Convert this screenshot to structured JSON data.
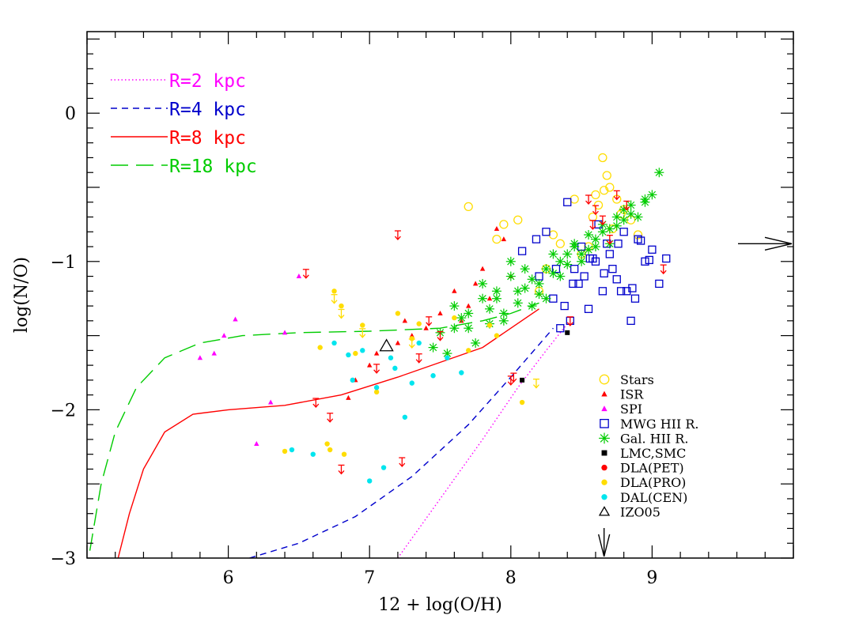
{
  "chart_data": {
    "type": "scatter",
    "title": "",
    "xlabel": "12 + log(O/H)",
    "ylabel": "log(N/O)",
    "xlim": [
      5.0,
      10.0
    ],
    "ylim": [
      -3.0,
      0.55
    ],
    "x_ticks": [
      6,
      7,
      8,
      9
    ],
    "y_ticks": [
      0,
      -1,
      -2,
      -3
    ],
    "x_tick_labels": [
      "6",
      "7",
      "8",
      "9"
    ],
    "y_tick_labels": [
      "0",
      "−1",
      "−2",
      "−3"
    ],
    "grid": false,
    "curve_legend": "top-left",
    "point_legend": "bottom-right",
    "curves": [
      {
        "name": "R=2 kpc",
        "color": "#ff00ff",
        "dash": "dotted",
        "x": [
          7.2,
          7.5,
          7.8,
          8.05,
          8.25,
          8.4
        ],
        "y": [
          -3.0,
          -2.6,
          -2.2,
          -1.85,
          -1.6,
          -1.42
        ]
      },
      {
        "name": "R=4 kpc",
        "color": "#0000cc",
        "dash": "short-dash",
        "x": [
          6.15,
          6.5,
          6.9,
          7.3,
          7.7,
          8.0,
          8.3
        ],
        "y": [
          -3.0,
          -2.9,
          -2.72,
          -2.45,
          -2.1,
          -1.78,
          -1.45
        ]
      },
      {
        "name": "R=8 kpc",
        "color": "#ff0000",
        "dash": "solid",
        "x": [
          5.22,
          5.3,
          5.4,
          5.55,
          5.75,
          6.0,
          6.4,
          6.8,
          7.2,
          7.5,
          7.8,
          8.0,
          8.2
        ],
        "y": [
          -3.0,
          -2.7,
          -2.4,
          -2.15,
          -2.03,
          -2.0,
          -1.97,
          -1.9,
          -1.78,
          -1.68,
          -1.58,
          -1.45,
          -1.32
        ]
      },
      {
        "name": "R=18 kpc",
        "color": "#00cc00",
        "dash": "long-dash",
        "x": [
          5.02,
          5.1,
          5.2,
          5.35,
          5.55,
          5.8,
          6.1,
          6.5,
          7.0,
          7.5,
          7.8,
          8.0,
          8.2
        ],
        "y": [
          -2.95,
          -2.5,
          -2.15,
          -1.85,
          -1.65,
          -1.55,
          -1.5,
          -1.48,
          -1.47,
          -1.45,
          -1.4,
          -1.35,
          -1.28
        ]
      }
    ],
    "series": [
      {
        "name": "Stars",
        "marker": "open-circle",
        "color": "#ffdd00",
        "x": [
          7.7,
          7.95,
          8.05,
          7.9,
          8.3,
          8.45,
          8.6,
          8.65,
          8.68,
          8.7,
          8.75,
          8.8,
          8.85,
          8.9,
          8.62,
          8.58,
          8.72,
          8.5,
          8.55,
          8.2,
          8.25,
          8.35,
          8.78,
          8.66
        ],
        "y": [
          -0.63,
          -0.75,
          -0.72,
          -0.85,
          -0.82,
          -0.58,
          -0.55,
          -0.3,
          -0.42,
          -0.5,
          -0.58,
          -0.65,
          -0.72,
          -0.82,
          -0.62,
          -0.7,
          -0.78,
          -0.95,
          -0.9,
          -1.2,
          -1.05,
          -0.88,
          -0.68,
          -0.52
        ]
      },
      {
        "name": "ISR",
        "marker": "filled-triangle",
        "color": "#ff0000",
        "x": [
          7.25,
          7.9,
          7.95,
          7.8,
          7.6,
          7.7,
          7.5,
          7.4,
          7.3,
          7.2,
          7.05,
          7.0,
          6.9,
          6.85,
          7.75,
          7.85,
          8.0,
          7.65
        ],
        "y": [
          -1.4,
          -0.78,
          -0.85,
          -1.05,
          -1.2,
          -1.3,
          -1.35,
          -1.45,
          -1.5,
          -1.55,
          -1.62,
          -1.7,
          -1.8,
          -1.92,
          -1.15,
          -1.25,
          -1.1,
          -1.4
        ]
      },
      {
        "name": "SPI",
        "marker": "filled-triangle",
        "color": "#ff00ff",
        "x": [
          5.8,
          5.97,
          6.05,
          6.2,
          6.5,
          6.4,
          6.3,
          5.9
        ],
        "y": [
          -1.65,
          -1.5,
          -1.39,
          -2.23,
          -1.1,
          -1.48,
          -1.95,
          -1.62
        ]
      },
      {
        "name": "MWG HII R.",
        "marker": "open-square",
        "color": "#0000cc",
        "x": [
          8.2,
          8.25,
          8.3,
          8.35,
          8.4,
          8.45,
          8.5,
          8.55,
          8.6,
          8.65,
          8.7,
          8.75,
          8.8,
          8.85,
          8.9,
          8.95,
          9.0,
          9.05,
          9.1,
          8.38,
          8.42,
          8.52,
          8.62,
          8.72,
          8.82,
          8.08,
          8.18,
          8.48,
          8.58,
          8.68,
          8.78,
          8.88,
          8.98,
          8.32,
          8.44,
          8.56,
          8.66,
          8.76,
          8.86,
          8.92
        ],
        "y": [
          -1.1,
          -0.8,
          -1.25,
          -1.45,
          -0.6,
          -1.05,
          -0.9,
          -1.32,
          -1.0,
          -1.2,
          -0.95,
          -1.12,
          -0.8,
          -1.4,
          -0.85,
          -1.0,
          -0.92,
          -1.15,
          -0.98,
          -1.3,
          -1.4,
          -1.1,
          -0.75,
          -1.05,
          -1.2,
          -0.93,
          -0.85,
          -1.15,
          -0.98,
          -0.88,
          -1.2,
          -1.25,
          -0.99,
          -1.05,
          -1.15,
          -0.98,
          -1.08,
          -0.88,
          -1.18,
          -0.86
        ]
      },
      {
        "name": "Gal. HII R.",
        "marker": "asterisk",
        "color": "#00cc00",
        "x": [
          7.45,
          7.55,
          7.6,
          7.7,
          7.75,
          7.8,
          7.85,
          7.9,
          7.95,
          8.0,
          8.05,
          8.1,
          8.15,
          8.2,
          8.25,
          8.3,
          8.35,
          8.4,
          8.45,
          8.5,
          8.55,
          8.6,
          8.65,
          8.7,
          8.75,
          8.8,
          8.85,
          8.9,
          8.95,
          9.0,
          9.05,
          7.6,
          7.7,
          7.8,
          7.9,
          8.0,
          8.1,
          8.2,
          8.3,
          8.4,
          8.5,
          8.6,
          8.7,
          8.8,
          7.5,
          7.65,
          7.85,
          7.95,
          8.05,
          8.15,
          8.25,
          8.35,
          8.45,
          8.55,
          8.65,
          8.75,
          8.85,
          8.95
        ],
        "y": [
          -1.58,
          -1.62,
          -1.45,
          -1.35,
          -1.55,
          -1.25,
          -1.42,
          -1.2,
          -1.35,
          -1.1,
          -1.28,
          -1.05,
          -1.3,
          -1.15,
          -1.25,
          -0.95,
          -1.1,
          -1.02,
          -0.9,
          -1.0,
          -0.82,
          -0.9,
          -0.75,
          -0.88,
          -0.7,
          -0.65,
          -0.62,
          -0.7,
          -0.58,
          -0.55,
          -0.4,
          -1.3,
          -1.45,
          -1.15,
          -1.25,
          -1.0,
          -1.18,
          -1.22,
          -1.08,
          -0.95,
          -0.95,
          -0.85,
          -0.78,
          -0.72,
          -1.48,
          -1.38,
          -1.32,
          -1.4,
          -1.2,
          -1.12,
          -1.05,
          -1.0,
          -0.88,
          -0.92,
          -0.8,
          -0.76,
          -0.68,
          -0.6
        ]
      },
      {
        "name": "LMC,SMC",
        "marker": "filled-square",
        "color": "#000000",
        "x": [
          8.4,
          8.08
        ],
        "y": [
          -1.48,
          -1.8
        ]
      },
      {
        "name": "DLA(PET)",
        "marker": "filled-circle",
        "color": "#ff0000",
        "x": [],
        "y": []
      },
      {
        "name": "DLA(PRO)",
        "marker": "filled-circle",
        "color": "#ffdd00",
        "x": [
          6.75,
          6.8,
          6.95,
          7.05,
          7.2,
          7.35,
          7.6,
          7.7,
          7.85,
          7.9,
          8.08,
          6.7,
          6.72,
          6.82,
          6.9,
          7.3,
          6.65,
          6.4
        ],
        "y": [
          -1.2,
          -1.3,
          -1.43,
          -1.88,
          -1.35,
          -1.42,
          -1.38,
          -1.6,
          -1.43,
          -1.5,
          -1.95,
          -2.23,
          -2.27,
          -2.3,
          -1.62,
          -1.52,
          -1.58,
          -2.28
        ]
      },
      {
        "name": "DAL(CEN)",
        "marker": "filled-circle",
        "color": "#00e5ee",
        "x": [
          6.45,
          6.75,
          6.85,
          6.95,
          7.05,
          7.15,
          7.25,
          7.35,
          7.45,
          7.55,
          7.65,
          6.6,
          6.88,
          7.0,
          7.1,
          7.18,
          7.3
        ],
        "y": [
          -2.27,
          -1.55,
          -1.63,
          -1.6,
          -1.85,
          -1.65,
          -2.05,
          -1.55,
          -1.77,
          -1.65,
          -1.75,
          -2.3,
          -1.8,
          -2.48,
          -2.39,
          -1.72,
          -1.82
        ]
      },
      {
        "name": "IZO05",
        "marker": "open-triangle",
        "color": "#000000",
        "x": [
          7.12
        ],
        "y": [
          -1.57
        ]
      }
    ],
    "upper_limits": {
      "color": "#ff0000",
      "x": [
        6.55,
        7.2,
        6.62,
        6.72,
        6.8,
        7.05,
        7.23,
        7.35,
        7.42,
        7.5,
        8.0,
        8.02,
        8.42,
        8.55,
        8.6,
        8.65,
        8.7,
        8.75,
        8.82,
        9.08,
        8.58
      ],
      "y": [
        -1.08,
        -0.82,
        -1.95,
        -2.05,
        -2.4,
        -1.72,
        -2.35,
        -1.65,
        -1.4,
        -1.5,
        -1.8,
        -1.78,
        -1.4,
        -0.58,
        -0.65,
        -0.72,
        -0.85,
        -0.55,
        -0.62,
        -1.05,
        -0.75
      ]
    },
    "yellow_upper_limits": {
      "color": "#ffdd00",
      "x": [
        6.75,
        6.8,
        6.95,
        7.3,
        8.18
      ],
      "y": [
        -1.25,
        -1.35,
        -1.48,
        -1.55,
        -1.82
      ]
    },
    "reference_arrows": [
      {
        "axis": "y",
        "value": -0.88,
        "direction": "right"
      },
      {
        "axis": "x",
        "value": 8.66,
        "direction": "down"
      }
    ],
    "curve_legend_entries": [
      "R=2 kpc",
      "R=4 kpc",
      "R=8 kpc",
      "R=18 kpc"
    ],
    "point_legend_entries": [
      "Stars",
      "ISR",
      "SPI",
      "MWG HII R.",
      "Gal. HII R.",
      "LMC,SMC",
      "DLA(PET)",
      "DLA(PRO)",
      "DAL(CEN)",
      "IZO05"
    ]
  }
}
